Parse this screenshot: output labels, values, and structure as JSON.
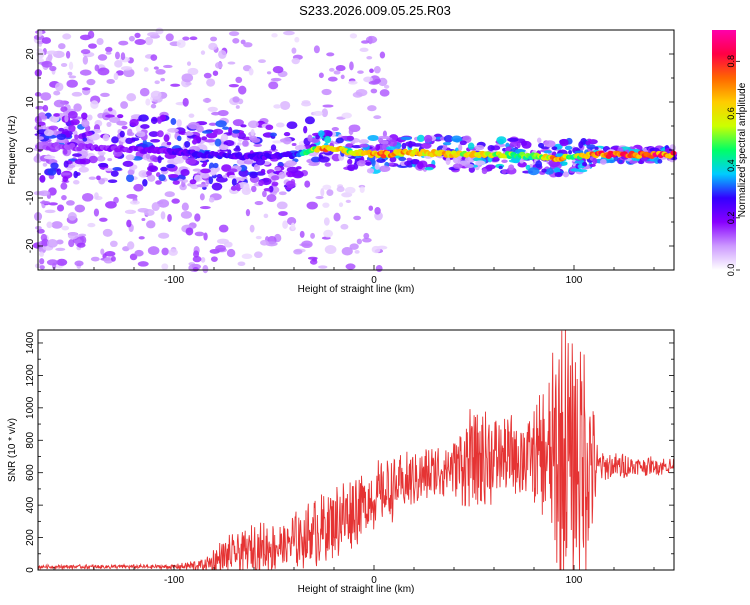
{
  "title": "S233.2026.009.05.25.R03",
  "chart_data": [
    {
      "type": "heatmap",
      "xlabel": "Height of straight line (km)",
      "ylabel": "Frequency (Hz)",
      "xlim": [
        -168,
        150
      ],
      "ylim": [
        -25,
        25
      ],
      "xticks": [
        -100,
        0,
        100
      ],
      "yticks": [
        -20,
        -10,
        0,
        10,
        20
      ],
      "colorbar": {
        "label": "Normalized spectral amplitude",
        "range": [
          0,
          0.92
        ],
        "ticks": [
          "0.0",
          "0.2",
          "0.4",
          "0.6",
          "0.8"
        ],
        "tick_values": [
          0,
          0.2,
          0.4,
          0.6,
          0.8
        ],
        "colors": [
          "#ffffff",
          "#cc99ff",
          "#8800ff",
          "#3300ff",
          "#00ccff",
          "#00ff66",
          "#ccff00",
          "#ffcc00",
          "#ff6600",
          "#ff0044",
          "#ff00aa"
        ]
      },
      "ridge": [
        {
          "x": -168,
          "f": 0.8,
          "a": 0.15
        },
        {
          "x": -140,
          "f": 0.5,
          "a": 0.2
        },
        {
          "x": -110,
          "f": 0.0,
          "a": 0.22
        },
        {
          "x": -85,
          "f": -1.0,
          "a": 0.3
        },
        {
          "x": -60,
          "f": -1.5,
          "a": 0.28
        },
        {
          "x": -40,
          "f": -1.0,
          "a": 0.3
        },
        {
          "x": -25,
          "f": 0.5,
          "a": 0.8
        },
        {
          "x": -10,
          "f": -0.5,
          "a": 0.6
        },
        {
          "x": 0,
          "f": -1.0,
          "a": 0.82
        },
        {
          "x": 20,
          "f": -0.5,
          "a": 0.75
        },
        {
          "x": 40,
          "f": -0.8,
          "a": 0.7
        },
        {
          "x": 60,
          "f": -1.0,
          "a": 0.65
        },
        {
          "x": 80,
          "f": -1.3,
          "a": 0.5
        },
        {
          "x": 92,
          "f": -1.8,
          "a": 0.85
        },
        {
          "x": 100,
          "f": -1.5,
          "a": 0.55
        },
        {
          "x": 112,
          "f": -1.0,
          "a": 0.9
        },
        {
          "x": 130,
          "f": -1.0,
          "a": 0.9
        },
        {
          "x": 150,
          "f": -1.0,
          "a": 0.88
        }
      ]
    },
    {
      "type": "line",
      "xlabel": "Height of straight line (km)",
      "ylabel": "SNR (10 * v/v)",
      "xlim": [
        -168,
        150
      ],
      "ylim": [
        0,
        1480
      ],
      "xticks": [
        -100,
        0,
        100
      ],
      "yticks": [
        0,
        200,
        400,
        600,
        800,
        1000,
        1200,
        1400
      ],
      "color": "#e53333",
      "envelope": [
        {
          "x": -168,
          "base": 20,
          "amp": 10
        },
        {
          "x": -100,
          "base": 20,
          "amp": 12
        },
        {
          "x": -85,
          "base": 30,
          "amp": 40
        },
        {
          "x": -75,
          "base": 80,
          "amp": 100
        },
        {
          "x": -60,
          "base": 130,
          "amp": 130
        },
        {
          "x": -45,
          "base": 150,
          "amp": 140
        },
        {
          "x": -30,
          "base": 230,
          "amp": 180
        },
        {
          "x": -15,
          "base": 330,
          "amp": 200
        },
        {
          "x": 0,
          "base": 450,
          "amp": 180
        },
        {
          "x": 20,
          "base": 560,
          "amp": 150
        },
        {
          "x": 40,
          "base": 640,
          "amp": 150
        },
        {
          "x": 50,
          "base": 680,
          "amp": 300
        },
        {
          "x": 65,
          "base": 700,
          "amp": 200
        },
        {
          "x": 80,
          "base": 700,
          "amp": 260
        },
        {
          "x": 88,
          "base": 680,
          "amp": 450
        },
        {
          "x": 92,
          "base": 700,
          "amp": 700
        },
        {
          "x": 100,
          "base": 700,
          "amp": 700
        },
        {
          "x": 107,
          "base": 680,
          "amp": 600
        },
        {
          "x": 112,
          "base": 640,
          "amp": 80
        },
        {
          "x": 150,
          "base": 640,
          "amp": 40
        }
      ]
    }
  ]
}
